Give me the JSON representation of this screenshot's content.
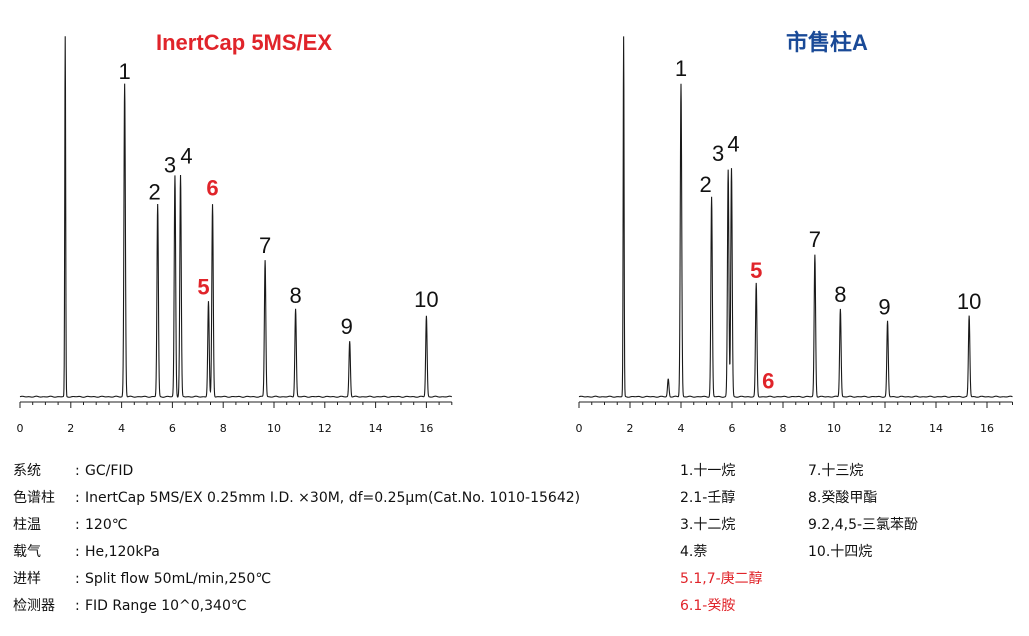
{
  "chart_data": [
    {
      "type": "line",
      "title": "InertCap 5MS/EX",
      "title_color": "#e0242a",
      "xlabel": "",
      "ylabel": "",
      "xlim": [
        0,
        17
      ],
      "ylim": [
        0,
        100
      ],
      "x_ticks": [
        0,
        2,
        4,
        6,
        8,
        10,
        12,
        14,
        16
      ],
      "grid": false,
      "peaks": [
        {
          "label": "",
          "x": 1.78,
          "y": 100
        },
        {
          "label": "1",
          "x": 4.12,
          "y": 87
        },
        {
          "label": "2",
          "x": 5.42,
          "y": 53.5
        },
        {
          "label": "3",
          "x": 6.1,
          "y": 61.5
        },
        {
          "label": "4",
          "x": 6.32,
          "y": 61.5
        },
        {
          "label": "5",
          "x": 7.42,
          "y": 26.5,
          "highlight": true
        },
        {
          "label": "6",
          "x": 7.58,
          "y": 53.5,
          "highlight": true
        },
        {
          "label": "7",
          "x": 9.65,
          "y": 38
        },
        {
          "label": "8",
          "x": 10.85,
          "y": 24.5
        },
        {
          "label": "9",
          "x": 12.98,
          "y": 15.5
        },
        {
          "label": "10",
          "x": 16.0,
          "y": 22.5
        }
      ]
    },
    {
      "type": "line",
      "title": "市售柱A",
      "title_color": "#1a4a97",
      "xlabel": "",
      "ylabel": "",
      "xlim": [
        0,
        17
      ],
      "ylim": [
        0,
        100
      ],
      "x_ticks": [
        0,
        2,
        4,
        6,
        8,
        10,
        12,
        14,
        16
      ],
      "grid": false,
      "peaks": [
        {
          "label": "",
          "x": 1.75,
          "y": 100
        },
        {
          "label": "",
          "x": 3.5,
          "y": 5
        },
        {
          "label": "1",
          "x": 4.0,
          "y": 87
        },
        {
          "label": "2",
          "x": 5.2,
          "y": 55.5
        },
        {
          "label": "3",
          "x": 5.85,
          "y": 63
        },
        {
          "label": "4",
          "x": 5.98,
          "y": 63.5
        },
        {
          "label": "6",
          "x": 6.95,
          "y": 1,
          "highlight": true
        },
        {
          "label": "5",
          "x": 6.95,
          "y": 30.5,
          "highlight": true
        },
        {
          "label": "7",
          "x": 9.25,
          "y": 39.5
        },
        {
          "label": "8",
          "x": 10.25,
          "y": 24.5
        },
        {
          "label": "9",
          "x": 12.1,
          "y": 21
        },
        {
          "label": "10",
          "x": 15.3,
          "y": 22.5
        }
      ]
    }
  ],
  "conditions": [
    {
      "key": "系统",
      "value": "GC/FID"
    },
    {
      "key": "色谱柱",
      "value": "InertCap 5MS/EX 0.25mm I.D. ×30M, df=0.25μm(Cat.No. 1010-15642)"
    },
    {
      "key": "柱温",
      "value": "120℃"
    },
    {
      "key": "载气",
      "value": "He,120kPa"
    },
    {
      "key": "进样",
      "value": "Split flow 50mL/min,250℃"
    },
    {
      "key": "检测器",
      "value": "FID Range 10^0,340℃"
    }
  ],
  "colon": ":",
  "legend_left": [
    {
      "text": "1.十一烷",
      "highlight": false
    },
    {
      "text": "2.1-壬醇",
      "highlight": false
    },
    {
      "text": "3.十二烷",
      "highlight": false
    },
    {
      "text": "4.萘",
      "highlight": false
    },
    {
      "text": "5.1,7-庚二醇",
      "highlight": true
    },
    {
      "text": "6.1-癸胺",
      "highlight": true
    }
  ],
  "legend_right": [
    {
      "text": "7.十三烷",
      "highlight": false
    },
    {
      "text": "8.癸酸甲酯",
      "highlight": false
    },
    {
      "text": "9.2,4,5-三氯苯酚",
      "highlight": false
    },
    {
      "text": "10.十四烷",
      "highlight": false
    }
  ]
}
